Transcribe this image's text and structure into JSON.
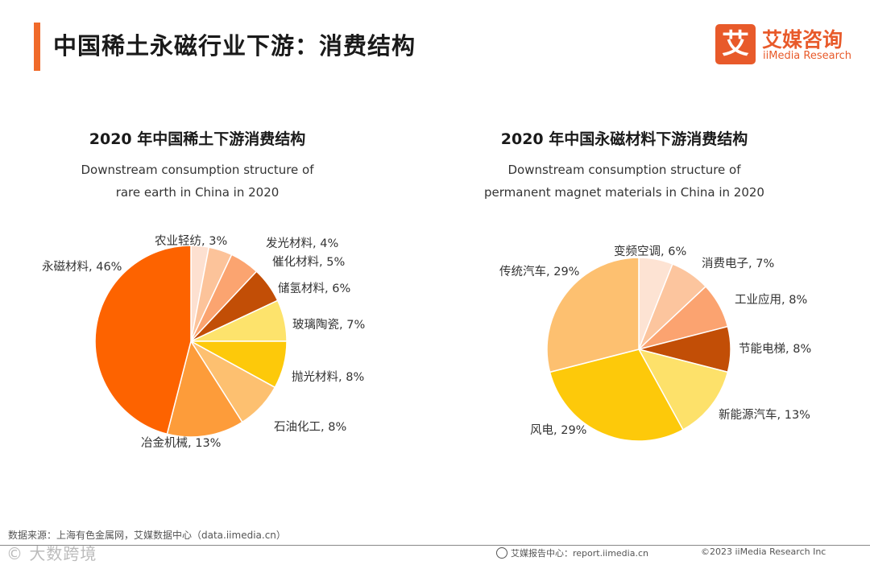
{
  "header": {
    "title": "中国稀土永磁行业下游：消费结构",
    "logo_mark": "艾",
    "logo_cn": "艾媒咨询",
    "logo_en": "iiMedia Research"
  },
  "chart_data": [
    {
      "type": "pie",
      "title": "2020 年中国稀土下游消费结构",
      "subtitle_lines": [
        "Downstream consumption structure of",
        "rare earth in China in 2020"
      ],
      "start": "12 o'clock",
      "direction": "clockwise",
      "unit": "%",
      "slices": [
        {
          "label": "农业轻纺",
          "value": 3,
          "color": "#fde0d0"
        },
        {
          "label": "发光材料",
          "value": 4,
          "color": "#fcc39a"
        },
        {
          "label": "催化材料",
          "value": 5,
          "color": "#fba470"
        },
        {
          "label": "储氢材料",
          "value": 6,
          "color": "#c24e06"
        },
        {
          "label": "玻璃陶瓷",
          "value": 7,
          "color": "#fde36c"
        },
        {
          "label": "抛光材料",
          "value": 8,
          "color": "#fdc90a"
        },
        {
          "label": "石油化工",
          "value": 8,
          "color": "#fdc070"
        },
        {
          "label": "冶金机械",
          "value": 13,
          "color": "#fd9c3a"
        },
        {
          "label": "永磁材料",
          "value": 46,
          "color": "#fd6300"
        }
      ]
    },
    {
      "type": "pie",
      "title": "2020 年中国永磁材料下游消费结构",
      "subtitle_lines": [
        "Downstream consumption structure of",
        "permanent magnet materials in China in 2020"
      ],
      "start": "12 o'clock",
      "direction": "clockwise",
      "unit": "%",
      "slices": [
        {
          "label": "变频空调",
          "value": 6,
          "color": "#fde3d3"
        },
        {
          "label": "消费电子",
          "value": 7,
          "color": "#fcc59e"
        },
        {
          "label": "工业应用",
          "value": 8,
          "color": "#fba370"
        },
        {
          "label": "节能电梯",
          "value": 8,
          "color": "#c24e06"
        },
        {
          "label": "新能源汽车",
          "value": 13,
          "color": "#fde16a"
        },
        {
          "label": "风电",
          "value": 29,
          "color": "#fdc90a"
        },
        {
          "label": "传统汽车",
          "value": 29,
          "color": "#fdc070"
        }
      ]
    }
  ],
  "footer": {
    "source": "数据来源：上海有色金属网，艾媒数据中心（data.iimedia.cn）",
    "watermark": "© 大数跨境",
    "report_url": "艾媒报告中心：report.iimedia.cn",
    "copyright": "©2023  iiMedia Research  Inc"
  }
}
